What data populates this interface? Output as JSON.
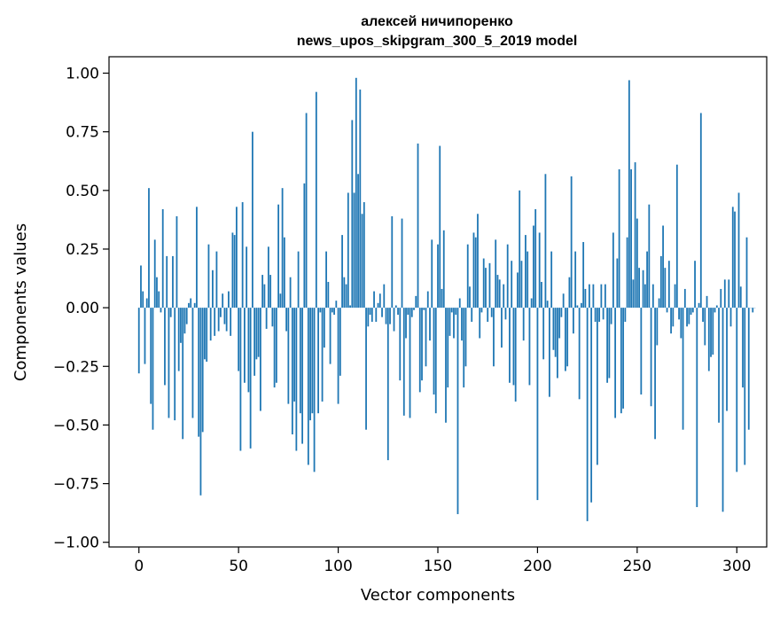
{
  "chart_data": {
    "type": "bar",
    "title": "алексей ничипоренко",
    "subtitle": "news_upos_skipgram_300_5_2019 model",
    "xlabel": "Vector components",
    "ylabel": "Components values",
    "xlim": [
      -15,
      315
    ],
    "ylim": [
      -1.02,
      1.07
    ],
    "xticks": [
      0,
      50,
      100,
      150,
      200,
      250,
      300
    ],
    "xtick_labels": [
      "0",
      "50",
      "100",
      "150",
      "200",
      "250",
      "300"
    ],
    "yticks": [
      -1.0,
      -0.75,
      -0.5,
      -0.25,
      0.0,
      0.25,
      0.5,
      0.75,
      1.0
    ],
    "ytick_labels": [
      "−1.00",
      "−0.75",
      "−0.50",
      "−0.25",
      "0.00",
      "0.25",
      "0.50",
      "0.75",
      "1.00"
    ],
    "grid": false,
    "bar_color": "#1f77b4",
    "values": [
      -0.28,
      0.18,
      0.07,
      -0.24,
      0.04,
      0.51,
      -0.41,
      -0.52,
      0.29,
      0.13,
      0.07,
      -0.02,
      0.42,
      -0.33,
      0.22,
      -0.47,
      -0.04,
      0.22,
      -0.48,
      0.39,
      -0.27,
      -0.15,
      -0.56,
      -0.11,
      -0.07,
      0.02,
      0.04,
      -0.47,
      0.02,
      0.43,
      -0.55,
      -0.8,
      -0.53,
      -0.22,
      -0.23,
      0.27,
      -0.14,
      0.16,
      -0.12,
      0.24,
      -0.1,
      -0.04,
      0.06,
      -0.07,
      -0.1,
      0.07,
      -0.12,
      0.32,
      0.31,
      0.43,
      -0.27,
      -0.61,
      0.45,
      -0.32,
      0.26,
      -0.36,
      -0.6,
      0.75,
      -0.29,
      -0.22,
      -0.21,
      -0.44,
      0.14,
      0.1,
      -0.09,
      0.26,
      0.14,
      -0.08,
      -0.34,
      -0.32,
      0.44,
      0.06,
      0.51,
      0.3,
      -0.1,
      -0.41,
      0.13,
      -0.54,
      -0.4,
      -0.61,
      0.24,
      -0.45,
      -0.58,
      0.53,
      0.83,
      -0.67,
      -0.48,
      -0.45,
      -0.7,
      0.92,
      -0.45,
      -0.02,
      -0.4,
      -0.17,
      0.24,
      0.11,
      -0.24,
      -0.02,
      -0.03,
      0.03,
      -0.41,
      -0.29,
      0.31,
      0.13,
      0.1,
      0.49,
      0.01,
      0.8,
      0.49,
      0.98,
      0.57,
      0.93,
      0.4,
      0.45,
      -0.52,
      -0.08,
      -0.03,
      -0.06,
      0.07,
      -0.06,
      0.02,
      0.06,
      -0.04,
      0.1,
      -0.07,
      -0.65,
      -0.07,
      0.39,
      -0.1,
      0.01,
      -0.03,
      -0.31,
      0.38,
      -0.46,
      -0.13,
      -0.03,
      -0.47,
      -0.04,
      -0.01,
      0.05,
      0.7,
      -0.36,
      -0.31,
      -0.01,
      -0.25,
      0.07,
      -0.14,
      0.29,
      -0.37,
      -0.45,
      0.27,
      0.69,
      0.08,
      0.33,
      -0.49,
      -0.34,
      -0.12,
      -0.02,
      -0.13,
      -0.03,
      -0.88,
      0.04,
      -0.14,
      -0.34,
      -0.25,
      0.27,
      0.09,
      -0.06,
      0.32,
      0.3,
      0.4,
      -0.13,
      -0.02,
      0.21,
      0.17,
      -0.06,
      0.19,
      -0.04,
      -0.25,
      0.29,
      0.14,
      0.12,
      -0.17,
      0.1,
      -0.05,
      0.27,
      -0.32,
      0.2,
      -0.33,
      -0.4,
      0.15,
      0.5,
      0.2,
      -0.14,
      0.31,
      0.24,
      -0.33,
      0.04,
      0.35,
      0.42,
      -0.82,
      0.32,
      0.11,
      -0.22,
      0.57,
      0.03,
      -0.38,
      0.24,
      -0.18,
      -0.21,
      -0.3,
      -0.13,
      -0.04,
      0.06,
      -0.27,
      -0.25,
      0.13,
      0.56,
      -0.11,
      0.24,
      0.01,
      -0.39,
      0.02,
      0.28,
      0.08,
      -0.91,
      0.1,
      -0.83,
      0.1,
      -0.06,
      -0.67,
      -0.06,
      0.1,
      -0.05,
      0.1,
      -0.32,
      -0.3,
      -0.07,
      0.32,
      -0.47,
      0.21,
      0.59,
      -0.45,
      -0.43,
      -0.06,
      0.3,
      0.97,
      0.59,
      0.12,
      0.62,
      0.38,
      0.17,
      -0.37,
      0.16,
      0.1,
      0.24,
      0.44,
      -0.42,
      0.1,
      -0.56,
      -0.16,
      0.04,
      0.22,
      0.35,
      0.17,
      -0.02,
      0.2,
      -0.11,
      -0.08,
      0.1,
      0.61,
      -0.05,
      -0.13,
      -0.52,
      0.08,
      -0.08,
      -0.07,
      -0.03,
      -0.02,
      0.2,
      -0.85,
      0.02,
      0.83,
      -0.06,
      -0.16,
      0.05,
      -0.27,
      -0.21,
      -0.2,
      -0.02,
      0.01,
      -0.49,
      0.08,
      -0.87,
      0.12,
      -0.44,
      0.12,
      -0.08,
      0.43,
      0.41,
      -0.7,
      0.49,
      0.09,
      -0.34,
      -0.67,
      0.3,
      -0.52,
      0.0,
      -0.02,
      0.0
    ]
  }
}
